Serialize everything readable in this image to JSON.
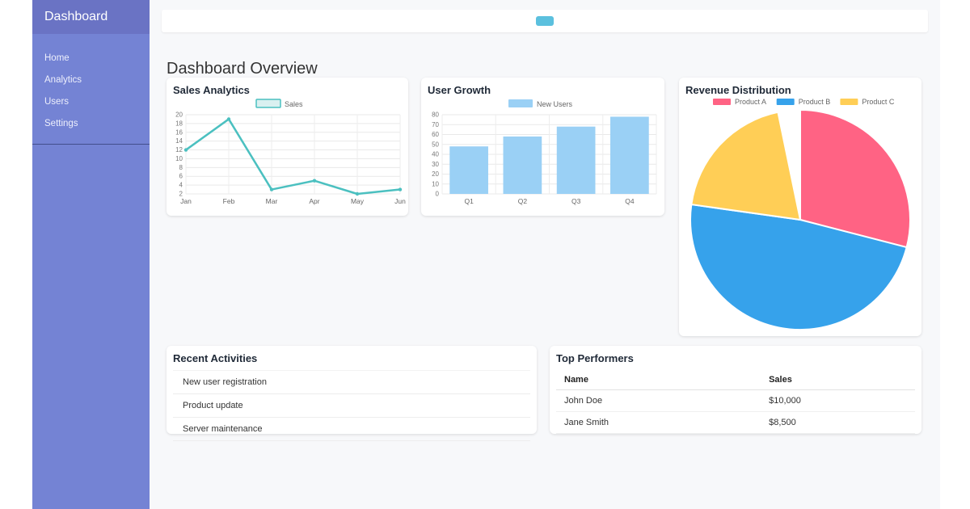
{
  "sidebar": {
    "title": "Dashboard",
    "items": [
      {
        "label": "Home"
      },
      {
        "label": "Analytics"
      },
      {
        "label": "Users"
      },
      {
        "label": "Settings"
      }
    ]
  },
  "topbar": {
    "button_color": "#5bc0de"
  },
  "main": {
    "heading": "Dashboard Overview"
  },
  "chart_data": [
    {
      "type": "line",
      "title": "Sales Analytics",
      "categories": [
        "Jan",
        "Feb",
        "Mar",
        "Apr",
        "May",
        "Jun"
      ],
      "series": [
        {
          "name": "Sales",
          "values": [
            12,
            19,
            3,
            5,
            2,
            3
          ]
        }
      ],
      "ylim": [
        2,
        20
      ],
      "ytick_step": 2,
      "grid": true,
      "legend_position": "top",
      "line_color": "#4bc0c0",
      "fill_color": "#d9f0f0"
    },
    {
      "type": "bar",
      "title": "User Growth",
      "categories": [
        "Q1",
        "Q2",
        "Q3",
        "Q4"
      ],
      "series": [
        {
          "name": "New Users",
          "values": [
            48,
            58,
            68,
            78
          ]
        }
      ],
      "ylim": [
        0,
        80
      ],
      "ytick_step": 10,
      "grid": true,
      "legend_position": "top",
      "bar_color": "#9ad0f5"
    },
    {
      "type": "pie",
      "title": "Revenue Distribution",
      "labels": [
        "Product A",
        "Product B",
        "Product C"
      ],
      "values": [
        30,
        50,
        20
      ],
      "segments_deg": [
        104.5,
        173.5,
        70.3
      ],
      "colors": [
        "#ff6384",
        "#36a2eb",
        "#ffce56"
      ],
      "legend_position": "top"
    }
  ],
  "recent_activities": {
    "title": "Recent Activities",
    "items": [
      "New user registration",
      "Product update",
      "Server maintenance"
    ]
  },
  "top_performers": {
    "title": "Top Performers",
    "columns": [
      "Name",
      "Sales"
    ],
    "rows": [
      [
        "John Doe",
        "$10,000"
      ],
      [
        "Jane Smith",
        "$8,500"
      ]
    ]
  },
  "colors": {
    "sidebar_bg": "#7483d4",
    "sidebar_header_bg": "#6a73c4",
    "main_bg": "#f7f8fa",
    "accent_teal": "#4bc0c0",
    "accent_blue": "#36a2eb",
    "accent_pink": "#ff6384",
    "accent_yellow": "#ffce56",
    "topbar_button": "#5bc0de"
  }
}
